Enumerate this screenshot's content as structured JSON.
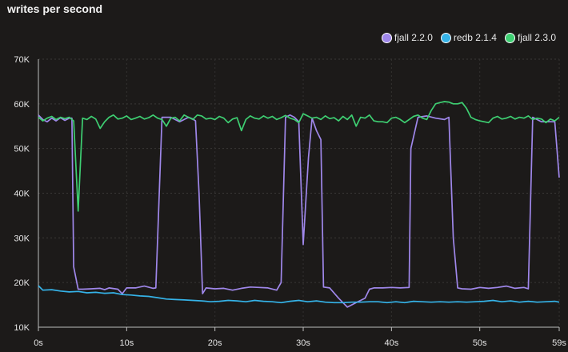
{
  "chart_data": {
    "type": "line",
    "title": "writes per second",
    "xlabel": "",
    "ylabel": "",
    "xlim": [
      0,
      59
    ],
    "ylim": [
      10000,
      70000
    ],
    "x_ticks": [
      0,
      10,
      20,
      30,
      40,
      50,
      59
    ],
    "x_tick_labels": [
      "0s",
      "10s",
      "20s",
      "30s",
      "40s",
      "50s",
      "59s"
    ],
    "y_ticks": [
      10000,
      20000,
      30000,
      40000,
      50000,
      60000,
      70000
    ],
    "y_tick_labels": [
      "10K",
      "20K",
      "30K",
      "40K",
      "50K",
      "60K",
      "70K"
    ],
    "grid": true,
    "legend_position": "top-right",
    "series": [
      {
        "name": "fjall 2.2.0",
        "color": "#9f87ea",
        "points": [
          [
            0,
            57500
          ],
          [
            0.5,
            56500
          ],
          [
            1,
            56000
          ],
          [
            1.5,
            56800
          ],
          [
            2,
            56200
          ],
          [
            2.5,
            56900
          ],
          [
            3,
            56300
          ],
          [
            3.5,
            56800
          ],
          [
            3.8,
            56800
          ],
          [
            4,
            23500
          ],
          [
            4.5,
            18500
          ],
          [
            5,
            18500
          ],
          [
            6,
            18600
          ],
          [
            7,
            18700
          ],
          [
            7.5,
            18400
          ],
          [
            8,
            18800
          ],
          [
            9,
            18500
          ],
          [
            9.5,
            17500
          ],
          [
            10,
            18800
          ],
          [
            11,
            18800
          ],
          [
            12,
            19200
          ],
          [
            13,
            18700
          ],
          [
            13.3,
            18800
          ],
          [
            14,
            57000
          ],
          [
            15,
            57000
          ],
          [
            16,
            56000
          ],
          [
            17,
            57000
          ],
          [
            17.5,
            56600
          ],
          [
            17.8,
            56200
          ],
          [
            18.2,
            40000
          ],
          [
            18.6,
            17500
          ],
          [
            19,
            18800
          ],
          [
            20,
            18600
          ],
          [
            21,
            18700
          ],
          [
            22,
            18300
          ],
          [
            23,
            18700
          ],
          [
            24,
            19000
          ],
          [
            25,
            18900
          ],
          [
            26,
            18800
          ],
          [
            27,
            18300
          ],
          [
            27.5,
            20000
          ],
          [
            28,
            57000
          ],
          [
            28.5,
            57500
          ],
          [
            29,
            57000
          ],
          [
            29.5,
            56000
          ],
          [
            30,
            28500
          ],
          [
            30.6,
            48000
          ],
          [
            31,
            56800
          ],
          [
            31.5,
            54000
          ],
          [
            32,
            52000
          ],
          [
            32.3,
            19000
          ],
          [
            33,
            18800
          ],
          [
            34,
            16500
          ],
          [
            35,
            14500
          ],
          [
            36,
            15500
          ],
          [
            37,
            16500
          ],
          [
            37.5,
            18500
          ],
          [
            38,
            18800
          ],
          [
            39,
            18800
          ],
          [
            40,
            18900
          ],
          [
            41,
            18800
          ],
          [
            42,
            18900
          ],
          [
            42.2,
            50000
          ],
          [
            43,
            57000
          ],
          [
            44,
            57300
          ],
          [
            45,
            56800
          ],
          [
            46,
            56500
          ],
          [
            46.5,
            57000
          ],
          [
            47,
            30000
          ],
          [
            47.5,
            18800
          ],
          [
            48,
            18600
          ],
          [
            49,
            18500
          ],
          [
            50,
            18900
          ],
          [
            51,
            18700
          ],
          [
            52,
            18900
          ],
          [
            53,
            19200
          ],
          [
            54,
            18700
          ],
          [
            55,
            18900
          ],
          [
            55.5,
            18600
          ],
          [
            56,
            57000
          ],
          [
            57,
            56000
          ],
          [
            58,
            56000
          ],
          [
            58.5,
            56000
          ],
          [
            59,
            43500
          ]
        ]
      },
      {
        "name": "redb 2.1.4",
        "color": "#35b3e8",
        "points": [
          [
            0,
            19300
          ],
          [
            0.5,
            18300
          ],
          [
            1.5,
            18400
          ],
          [
            2.5,
            18100
          ],
          [
            3.5,
            17900
          ],
          [
            4.5,
            18000
          ],
          [
            5.5,
            17700
          ],
          [
            6.5,
            17800
          ],
          [
            7.5,
            17600
          ],
          [
            8.5,
            17700
          ],
          [
            9.5,
            17300
          ],
          [
            10.5,
            17200
          ],
          [
            11.5,
            17000
          ],
          [
            12.5,
            16900
          ],
          [
            13.5,
            16600
          ],
          [
            14.5,
            16300
          ],
          [
            15.5,
            16200
          ],
          [
            16.5,
            16100
          ],
          [
            17.5,
            16000
          ],
          [
            18.5,
            15900
          ],
          [
            19.5,
            15700
          ],
          [
            20.5,
            15800
          ],
          [
            21.5,
            16000
          ],
          [
            22.5,
            15900
          ],
          [
            23.5,
            15700
          ],
          [
            24.5,
            16000
          ],
          [
            25.5,
            15800
          ],
          [
            26.5,
            15700
          ],
          [
            27.5,
            15500
          ],
          [
            28.5,
            15800
          ],
          [
            29.5,
            16000
          ],
          [
            30.5,
            15700
          ],
          [
            31.5,
            15900
          ],
          [
            32.5,
            15600
          ],
          [
            33.5,
            15500
          ],
          [
            34.5,
            15500
          ],
          [
            35.5,
            15600
          ],
          [
            36.5,
            15600
          ],
          [
            37.5,
            15700
          ],
          [
            38.5,
            15700
          ],
          [
            39.5,
            15500
          ],
          [
            40.5,
            15700
          ],
          [
            41.5,
            15500
          ],
          [
            42.5,
            15800
          ],
          [
            43.5,
            15700
          ],
          [
            44.5,
            15600
          ],
          [
            45.5,
            15700
          ],
          [
            46.5,
            15600
          ],
          [
            47.5,
            15700
          ],
          [
            48.5,
            15600
          ],
          [
            49.5,
            15700
          ],
          [
            50.5,
            15800
          ],
          [
            51.5,
            16000
          ],
          [
            52.5,
            15700
          ],
          [
            53.5,
            15900
          ],
          [
            54.5,
            15600
          ],
          [
            55.5,
            15800
          ],
          [
            56.5,
            15600
          ],
          [
            57.5,
            15700
          ],
          [
            58.5,
            15800
          ],
          [
            59,
            15600
          ]
        ]
      },
      {
        "name": "fjall 2.3.0",
        "color": "#3ecf72",
        "points": [
          [
            0,
            57000
          ],
          [
            0.5,
            56200
          ],
          [
            1,
            56800
          ],
          [
            1.5,
            57200
          ],
          [
            2,
            56500
          ],
          [
            2.5,
            57000
          ],
          [
            3,
            56700
          ],
          [
            3.5,
            57000
          ],
          [
            4,
            56200
          ],
          [
            4.5,
            36000
          ],
          [
            5,
            56800
          ],
          [
            5.5,
            56500
          ],
          [
            6,
            57200
          ],
          [
            6.5,
            56600
          ],
          [
            7,
            54500
          ],
          [
            7.5,
            56000
          ],
          [
            8,
            57000
          ],
          [
            8.5,
            57500
          ],
          [
            9,
            56600
          ],
          [
            9.5,
            56800
          ],
          [
            10,
            57300
          ],
          [
            10.5,
            56500
          ],
          [
            11,
            56800
          ],
          [
            11.5,
            57200
          ],
          [
            12,
            56600
          ],
          [
            12.5,
            56900
          ],
          [
            13,
            57500
          ],
          [
            13.5,
            56800
          ],
          [
            14,
            56500
          ],
          [
            14.5,
            55000
          ],
          [
            15,
            56800
          ],
          [
            15.5,
            57000
          ],
          [
            16,
            56200
          ],
          [
            16.5,
            57500
          ],
          [
            17,
            57000
          ],
          [
            17.5,
            56500
          ],
          [
            18,
            57500
          ],
          [
            18.5,
            57300
          ],
          [
            19,
            56600
          ],
          [
            19.5,
            56800
          ],
          [
            20,
            56500
          ],
          [
            20.5,
            57200
          ],
          [
            21,
            56800
          ],
          [
            21.5,
            55800
          ],
          [
            22,
            56600
          ],
          [
            22.5,
            56900
          ],
          [
            23,
            54000
          ],
          [
            23.5,
            56500
          ],
          [
            24,
            57300
          ],
          [
            24.5,
            56800
          ],
          [
            25,
            56600
          ],
          [
            25.5,
            57300
          ],
          [
            26,
            56800
          ],
          [
            26.5,
            57200
          ],
          [
            27,
            56500
          ],
          [
            27.5,
            56900
          ],
          [
            28,
            57400
          ],
          [
            28.5,
            56800
          ],
          [
            29,
            56500
          ],
          [
            29.5,
            55800
          ],
          [
            30,
            57800
          ],
          [
            30.5,
            57300
          ],
          [
            31,
            56800
          ],
          [
            31.5,
            57000
          ],
          [
            32,
            56500
          ],
          [
            32.5,
            57300
          ],
          [
            33,
            56700
          ],
          [
            33.5,
            56900
          ],
          [
            34,
            56200
          ],
          [
            34.5,
            57200
          ],
          [
            35,
            56500
          ],
          [
            35.5,
            57500
          ],
          [
            36,
            55000
          ],
          [
            36.5,
            57000
          ],
          [
            37,
            56800
          ],
          [
            37.5,
            57500
          ],
          [
            38,
            56200
          ],
          [
            38.5,
            56000
          ],
          [
            39,
            56000
          ],
          [
            39.5,
            55800
          ],
          [
            40,
            56800
          ],
          [
            40.5,
            57000
          ],
          [
            41,
            56500
          ],
          [
            41.5,
            55800
          ],
          [
            42,
            56500
          ],
          [
            42.5,
            57200
          ],
          [
            43,
            57500
          ],
          [
            43.5,
            56800
          ],
          [
            44,
            56500
          ],
          [
            44.5,
            58500
          ],
          [
            45,
            60000
          ],
          [
            45.5,
            60300
          ],
          [
            46,
            60500
          ],
          [
            46.5,
            60400
          ],
          [
            47,
            60000
          ],
          [
            47.5,
            60000
          ],
          [
            48,
            60300
          ],
          [
            48.5,
            59000
          ],
          [
            49,
            57000
          ],
          [
            49.5,
            56500
          ],
          [
            50,
            56200
          ],
          [
            50.5,
            56000
          ],
          [
            51,
            55800
          ],
          [
            51.5,
            56800
          ],
          [
            52,
            57200
          ],
          [
            52.5,
            56600
          ],
          [
            53,
            56800
          ],
          [
            53.5,
            57200
          ],
          [
            54,
            56600
          ],
          [
            54.5,
            57000
          ],
          [
            55,
            56800
          ],
          [
            55.5,
            57300
          ],
          [
            56,
            56500
          ],
          [
            56.5,
            56800
          ],
          [
            57,
            56600
          ],
          [
            57.5,
            55800
          ],
          [
            58,
            56600
          ],
          [
            58.5,
            56200
          ],
          [
            59,
            57000
          ]
        ]
      }
    ]
  }
}
